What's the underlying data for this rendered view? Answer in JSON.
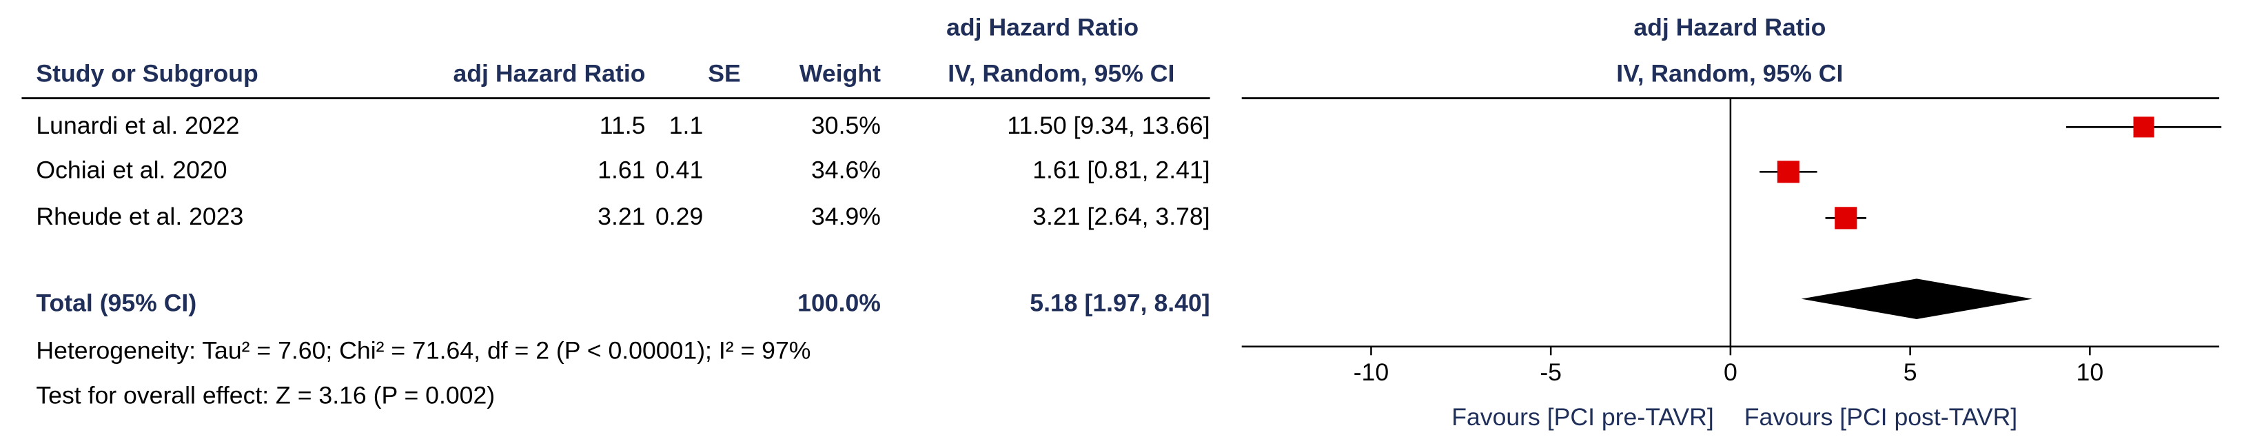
{
  "chart_data": {
    "type": "forest",
    "headers": {
      "study": "Study or Subgroup",
      "hr": "adj Hazard Ratio",
      "se": "SE",
      "weight": "Weight",
      "ci_title": "adj Hazard Ratio",
      "ci_method": "IV, Random, 95% CI",
      "plot_title": "adj Hazard Ratio",
      "plot_method": "IV, Random, 95% CI"
    },
    "categories": [
      "Lunardi et al. 2022",
      "Ochiai et al. 2020",
      "Rheude et al. 2023"
    ],
    "values": [
      11.5,
      1.61,
      3.21
    ],
    "se": [
      1.1,
      0.41,
      0.29
    ],
    "weights": [
      30.5,
      34.6,
      34.9
    ],
    "weight_labels": [
      "30.5%",
      "34.6%",
      "34.9%"
    ],
    "ci_labels": [
      "11.50 [9.34, 13.66]",
      "1.61 [0.81, 2.41]",
      "3.21 [2.64, 3.78]"
    ],
    "lower": [
      9.34,
      0.81,
      2.64
    ],
    "upper": [
      13.66,
      2.41,
      3.78
    ],
    "total": {
      "label": "Total (95% CI)",
      "weight": 100,
      "weight_label": "100.0%",
      "estimate": 5.18,
      "lower": 1.97,
      "upper": 8.4,
      "ci_label": "5.18 [1.97, 8.40]"
    },
    "heterogeneity": "Heterogeneity: Tau² = 7.60; Chi² = 71.64, df = 2 (P < 0.00001); I² = 97%",
    "overall_effect": "Test for overall effect: Z = 3.16 (P = 0.002)",
    "xlim": [
      -13.6,
      13.6
    ],
    "xticks": [
      -10,
      -5,
      0,
      5,
      10
    ],
    "reference_line": 0,
    "x_left_label": "Favours [PCI pre-TAVR]",
    "x_right_label": "Favours [PCI post-TAVR]",
    "color": "#e00000"
  }
}
